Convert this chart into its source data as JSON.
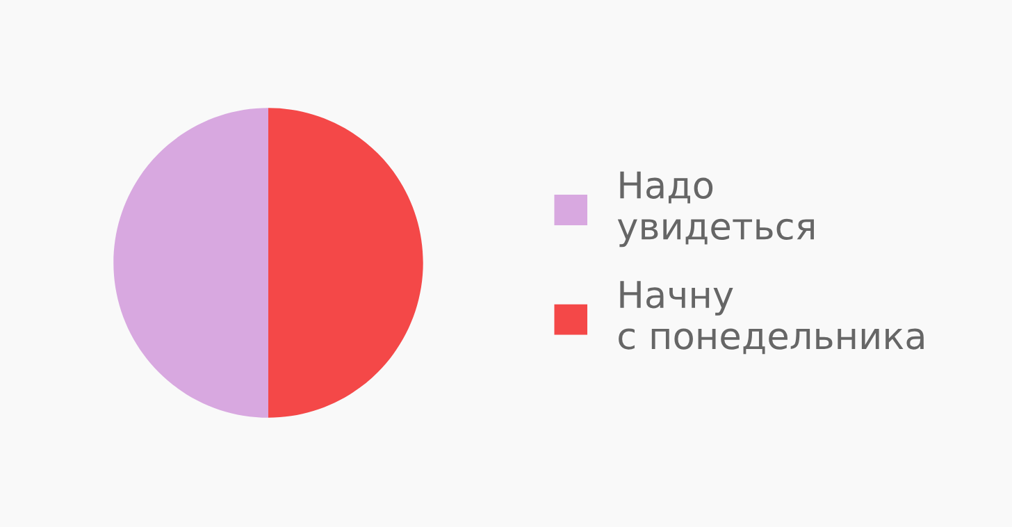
{
  "chart_data": {
    "type": "pie",
    "categories": [
      "Надо увидеться",
      "Начну с понедельника"
    ],
    "values": [
      50,
      50
    ],
    "colors": [
      "#d8a8e0",
      "#f44848"
    ],
    "legend": "right"
  }
}
